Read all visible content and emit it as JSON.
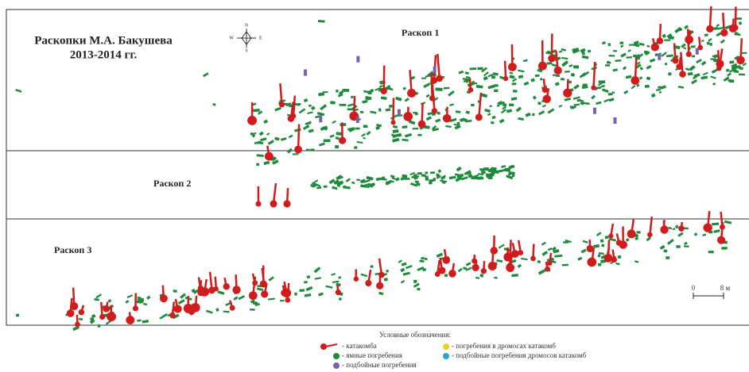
{
  "header": {
    "title": "Раскопки М.А. Бакушева",
    "years": "2013-2014 гг."
  },
  "compass": {
    "n": "N",
    "e": "E",
    "s": "S",
    "w": "W"
  },
  "sites": [
    "Раскоп 1",
    "Раскоп 2",
    "Раскоп 3"
  ],
  "scale": {
    "start": "0",
    "end": "8 м"
  },
  "legend": {
    "title": "Условные обозначения:",
    "items": [
      "- катакомба",
      "- ямные погребения",
      "- подбойные погребения",
      "- погребения в дромосах катакомб",
      "- подбойные погребения дромосов катакомб"
    ]
  }
}
